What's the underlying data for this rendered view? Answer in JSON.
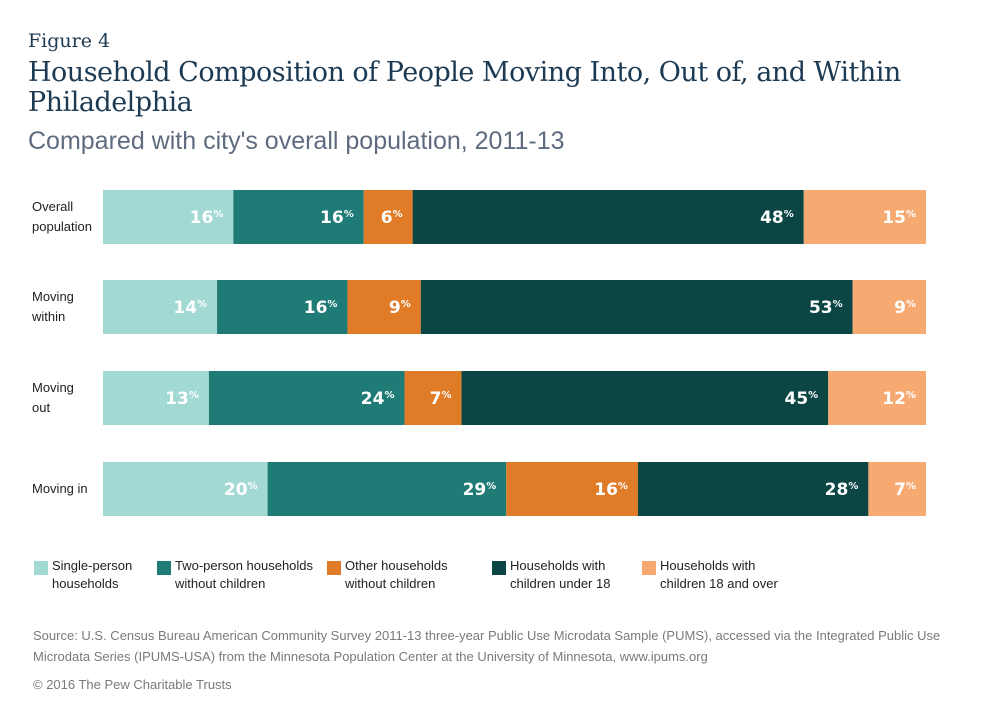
{
  "figure_label": "Figure 4",
  "chart_data": {
    "type": "bar",
    "orientation": "horizontal",
    "stacked": true,
    "title": "Household Composition of People Moving Into, Out of, and Within Philadelphia",
    "subtitle": "Compared with city's overall population, 2011-13",
    "xlabel": "",
    "ylabel": "",
    "xlim": [
      0,
      100
    ],
    "grid": false,
    "legend_position": "bottom",
    "categories": [
      "Overall population",
      "Moving within",
      "Moving out",
      "Moving in"
    ],
    "category_lines": [
      [
        "Overall",
        "population"
      ],
      [
        "Moving",
        "within"
      ],
      [
        "Moving",
        "out"
      ],
      [
        "Moving in"
      ]
    ],
    "series": [
      {
        "name": "Single-person households",
        "legend_lines": [
          "Single-person",
          "households"
        ],
        "color": "#a3d9d3",
        "values": [
          16,
          14,
          13,
          20
        ]
      },
      {
        "name": "Two-person households without children",
        "legend_lines": [
          "Two-person households",
          "without children"
        ],
        "color": "#1f7b75",
        "values": [
          16,
          16,
          24,
          29
        ]
      },
      {
        "name": "Other households without children",
        "legend_lines": [
          "Other households",
          "without children"
        ],
        "color": "#e07c27",
        "values": [
          6,
          9,
          7,
          16
        ]
      },
      {
        "name": "Households with children under 18",
        "legend_lines": [
          "Households with",
          "children under 18"
        ],
        "color": "#0b4645",
        "values": [
          48,
          53,
          45,
          28
        ]
      },
      {
        "name": "Households with children 18 and over",
        "legend_lines": [
          "Households with",
          "children 18 and over"
        ],
        "color": "#f7a972",
        "values": [
          15,
          9,
          12,
          7
        ]
      }
    ],
    "value_suffix": "%"
  },
  "source": "Source: U.S. Census Bureau American Community Survey 2011-13 three-year Public Use Microdata Sample (PUMS), accessed via the Integrated Public Use Microdata Series (IPUMS-USA) from the Minnesota Population Center at the University of Minnesota, www.ipums.org",
  "copyright": "© 2016 The Pew Charitable Trusts"
}
